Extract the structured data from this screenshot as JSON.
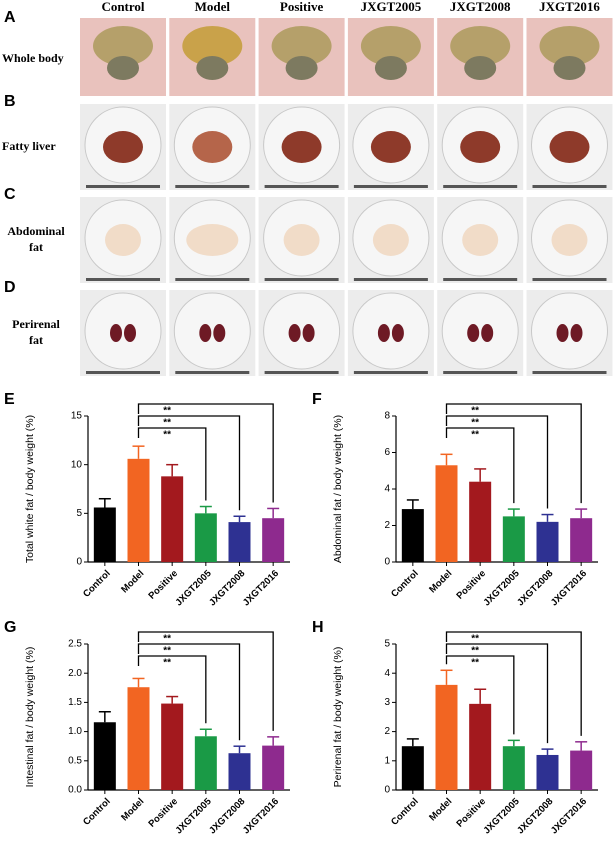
{
  "photo_grid": {
    "columns": [
      "Control",
      "Model",
      "Positive",
      "JXGT2005",
      "JXGT2008",
      "JXGT2016"
    ],
    "rows": [
      {
        "letter": "A",
        "label": [
          "Whole body"
        ]
      },
      {
        "letter": "B",
        "label": [
          "Fatty liver"
        ]
      },
      {
        "letter": "C",
        "label": [
          "Abdominal",
          "fat"
        ]
      },
      {
        "letter": "D",
        "label": [
          "Perirenal",
          "fat"
        ]
      }
    ]
  },
  "chart_data": [
    {
      "type": "bar",
      "letter": "E",
      "ylabel": "Total white fat / body weight (%)",
      "categories": [
        "Control",
        "Model",
        "Positive",
        "JXGT2005",
        "JXGT2008",
        "JXGT2016"
      ],
      "values": [
        5.6,
        10.6,
        8.8,
        5.0,
        4.1,
        4.5
      ],
      "errors": [
        0.9,
        1.3,
        1.2,
        0.7,
        0.6,
        1.0
      ],
      "colors": [
        "#000000",
        "#f26522",
        "#a3191e",
        "#1a9a46",
        "#2e3192",
        "#8e2a8e"
      ],
      "ylim": [
        0,
        15
      ],
      "yticks": [
        0,
        5,
        10,
        15
      ],
      "comparisons": [
        {
          "groups": [
            "Model",
            "JXGT2005"
          ],
          "label": "**"
        },
        {
          "groups": [
            "Model",
            "JXGT2008"
          ],
          "label": "**"
        },
        {
          "groups": [
            "Model",
            "JXGT2016"
          ],
          "label": "**"
        }
      ]
    },
    {
      "type": "bar",
      "letter": "F",
      "ylabel": "Abdominal fat / body weight (%)",
      "categories": [
        "Control",
        "Model",
        "Positive",
        "JXGT2005",
        "JXGT2008",
        "JXGT2016"
      ],
      "values": [
        2.9,
        5.3,
        4.4,
        2.5,
        2.2,
        2.4
      ],
      "errors": [
        0.5,
        0.6,
        0.7,
        0.4,
        0.4,
        0.5
      ],
      "colors": [
        "#000000",
        "#f26522",
        "#a3191e",
        "#1a9a46",
        "#2e3192",
        "#8e2a8e"
      ],
      "ylim": [
        0,
        8
      ],
      "yticks": [
        0,
        2,
        4,
        6,
        8
      ],
      "comparisons": [
        {
          "groups": [
            "Model",
            "JXGT2005"
          ],
          "label": "**"
        },
        {
          "groups": [
            "Model",
            "JXGT2008"
          ],
          "label": "**"
        },
        {
          "groups": [
            "Model",
            "JXGT2016"
          ],
          "label": "**"
        }
      ]
    },
    {
      "type": "bar",
      "letter": "G",
      "ylabel": "Intestinal fat / body weight (%)",
      "categories": [
        "Control",
        "Model",
        "Positive",
        "JXGT2005",
        "JXGT2008",
        "JXGT2016"
      ],
      "values": [
        1.16,
        1.76,
        1.48,
        0.92,
        0.63,
        0.76
      ],
      "errors": [
        0.18,
        0.15,
        0.12,
        0.12,
        0.12,
        0.15
      ],
      "colors": [
        "#000000",
        "#f26522",
        "#a3191e",
        "#1a9a46",
        "#2e3192",
        "#8e2a8e"
      ],
      "ylim": [
        0,
        2.5
      ],
      "yticks": [
        {
          "value": 0,
          "label": "0.0"
        },
        0.5,
        {
          "value": 1,
          "label": "1.0"
        },
        1.5,
        {
          "value": 2,
          "label": "2.0"
        },
        2.5
      ],
      "comparisons": [
        {
          "groups": [
            "Model",
            "JXGT2005"
          ],
          "label": "**"
        },
        {
          "groups": [
            "Model",
            "JXGT2008"
          ],
          "label": "**"
        },
        {
          "groups": [
            "Model",
            "JXGT2016"
          ],
          "label": "**"
        }
      ]
    },
    {
      "type": "bar",
      "letter": "H",
      "ylabel": "Perirenal fat / body weight (%)",
      "categories": [
        "Control",
        "Model",
        "Positive",
        "JXGT2005",
        "JXGT2008",
        "JXGT2016"
      ],
      "values": [
        1.5,
        3.6,
        2.95,
        1.5,
        1.2,
        1.35
      ],
      "errors": [
        0.25,
        0.5,
        0.5,
        0.2,
        0.2,
        0.3
      ],
      "colors": [
        "#000000",
        "#f26522",
        "#a3191e",
        "#1a9a46",
        "#2e3192",
        "#8e2a8e"
      ],
      "ylim": [
        0,
        5
      ],
      "yticks": [
        0,
        1,
        2,
        3,
        4,
        5
      ],
      "comparisons": [
        {
          "groups": [
            "Model",
            "JXGT2005"
          ],
          "label": "**"
        },
        {
          "groups": [
            "Model",
            "JXGT2008"
          ],
          "label": "**"
        },
        {
          "groups": [
            "Model",
            "JXGT2016"
          ],
          "label": "**"
        }
      ]
    }
  ]
}
